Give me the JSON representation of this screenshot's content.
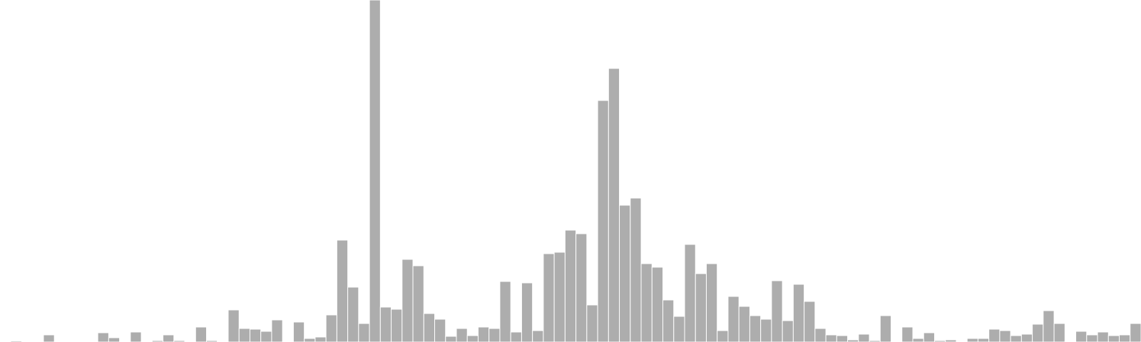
{
  "chart_data": {
    "type": "bar",
    "title": "",
    "xlabel": "",
    "ylabel": "",
    "grid": false,
    "legend": "none",
    "ylim": [
      0,
      480
    ],
    "bar_color": "#adadad",
    "values": [
      0,
      1.5,
      1,
      0,
      10,
      0,
      0,
      0,
      1,
      13,
      6,
      0,
      14,
      0,
      2,
      10,
      2,
      1,
      21,
      2,
      1,
      45,
      19,
      18,
      15,
      31,
      0,
      28,
      5,
      7,
      38,
      143,
      77,
      26,
      480,
      49,
      46,
      116,
      107,
      40,
      32,
      8,
      19,
      9,
      21,
      19,
      85,
      14,
      83,
      16,
      124,
      126,
      157,
      152,
      52,
      339,
      384,
      192,
      202,
      110,
      105,
      59,
      36,
      137,
      96,
      110,
      16,
      64,
      50,
      37,
      32,
      86,
      30,
      81,
      57,
      19,
      10,
      9,
      3,
      11,
      2,
      37,
      0,
      21,
      5,
      13,
      2,
      3,
      0,
      5,
      5,
      18,
      16,
      9,
      11,
      25,
      44,
      26,
      1,
      15,
      10,
      14,
      9,
      10,
      26
    ]
  }
}
